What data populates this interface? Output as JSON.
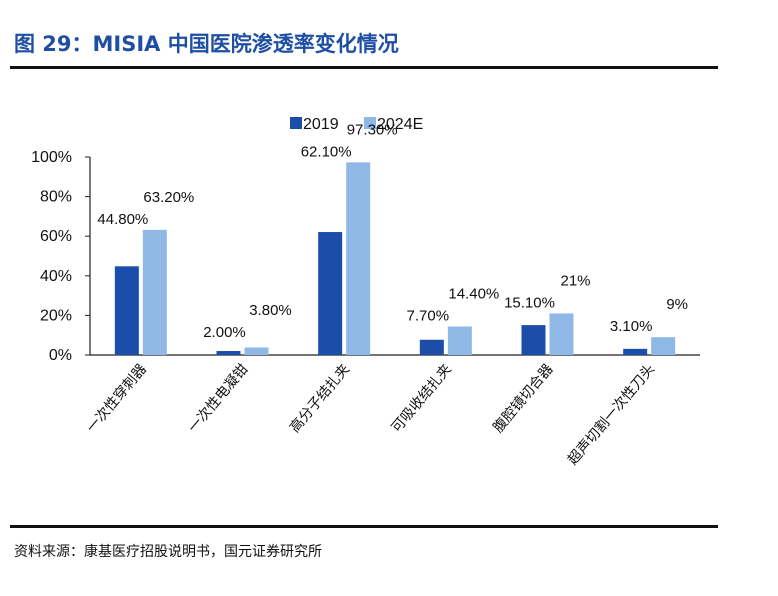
{
  "figure_title": "图 29：MISIA 中国医院渗透率变化情况",
  "source_text": "资料来源：康基医疗招股说明书，国元证券研究所",
  "colors": {
    "title": "#1f4fa3",
    "series_2019": "#1a4ea8",
    "series_2024E": "#8fb8e6",
    "axis": "#222222",
    "text": "#111111"
  },
  "chart_data": {
    "type": "bar",
    "categories": [
      "一次性穿刺器",
      "一次性电凝钳",
      "高分子结扎夹",
      "可吸收结扎夹",
      "腹腔镜切合器",
      "超声切割一次性刀头"
    ],
    "series": [
      {
        "name": "2019",
        "values": [
          44.8,
          2.0,
          62.1,
          7.7,
          15.1,
          3.1
        ]
      },
      {
        "name": "2024E",
        "values": [
          63.2,
          3.8,
          97.3,
          14.4,
          21.0,
          9.0
        ]
      }
    ],
    "data_labels": {
      "2019": [
        "44.80%",
        "2.00%",
        "62.10%",
        "7.70%",
        "15.10%",
        "3.10%"
      ],
      "2024E": [
        "63.20%",
        "3.80%",
        "97.30%",
        "14.40%",
        "21%",
        "9%"
      ]
    },
    "y_ticks": [
      "0%",
      "20%",
      "40%",
      "60%",
      "80%",
      "100%"
    ],
    "ylim": [
      0,
      100
    ],
    "grid": false,
    "legend_position": "top"
  }
}
